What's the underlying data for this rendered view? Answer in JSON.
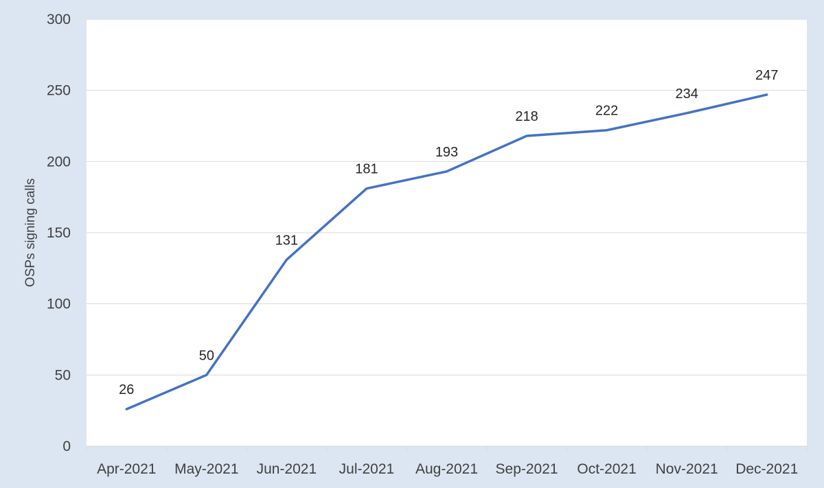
{
  "chart_data": {
    "type": "line",
    "title": "",
    "xlabel": "",
    "ylabel": "OSPs signing calls",
    "categories": [
      "Apr-2021",
      "May-2021",
      "Jun-2021",
      "Jul-2021",
      "Aug-2021",
      "Sep-2021",
      "Oct-2021",
      "Nov-2021",
      "Dec-2021"
    ],
    "series": [
      {
        "values": [
          26,
          50,
          131,
          181,
          193,
          218,
          222,
          234,
          247
        ],
        "color": "#4472c4"
      }
    ],
    "ylim": [
      0,
      300
    ],
    "yticks": [
      0,
      50,
      100,
      150,
      200,
      250,
      300
    ],
    "grid": true,
    "legend": "none",
    "data_labels": true,
    "colors": {
      "background": "#dce6f2",
      "plot_area": "#ffffff",
      "gridline": "#d9d9d9",
      "line": "#4472c4"
    }
  }
}
